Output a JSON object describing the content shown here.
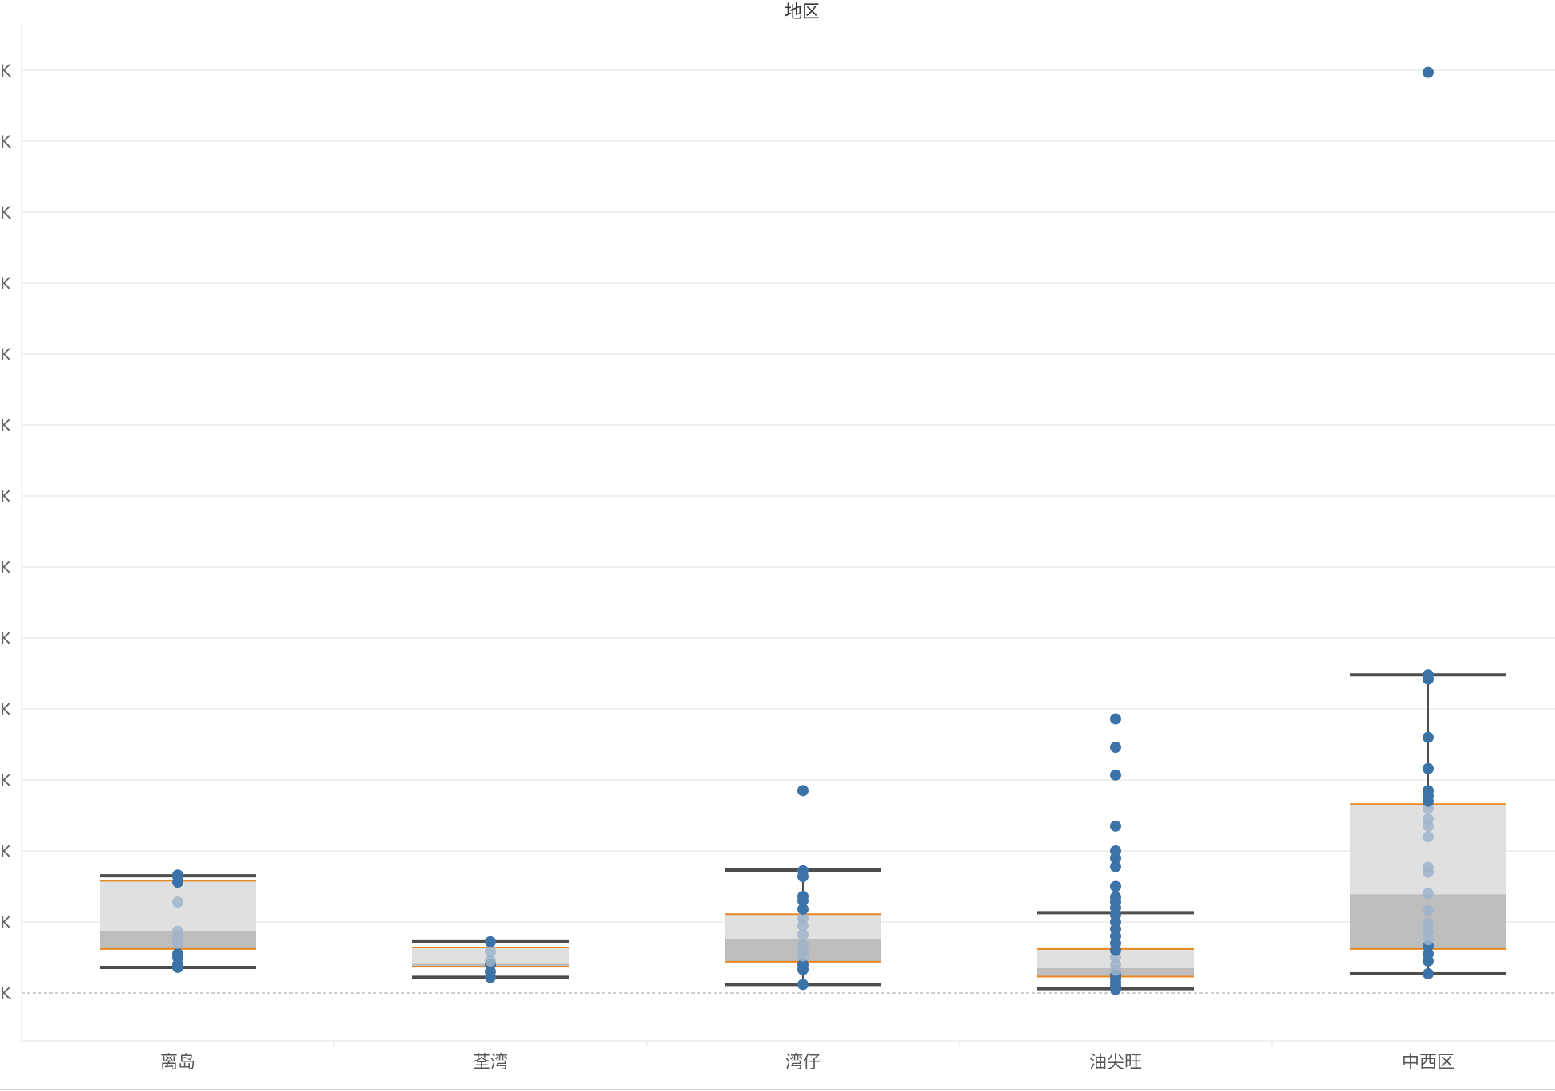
{
  "header": {
    "title": "地区"
  },
  "colors": {
    "point": "#3b73a8",
    "point_faded": "#9fb4ca",
    "median_line": "#e8871e",
    "box_upper": "#e0e0e0",
    "box_lower": "#bdbdbd",
    "whisker": "#4d4d4d",
    "grid": "#ececec"
  },
  "chart_data": {
    "type": "boxplot",
    "title": "地区",
    "xlabel": "",
    "ylabel": "",
    "categories": [
      "离岛",
      "荃湾",
      "湾仔",
      "油尖旺",
      "中西区"
    ],
    "ylim": [
      -1,
      13.7
    ],
    "y_ticks": [
      0,
      1,
      2,
      3,
      4,
      5,
      6,
      7,
      8,
      9,
      10,
      11,
      12,
      13
    ],
    "y_tick_labels": [
      "K",
      "K",
      "K",
      "K",
      "K",
      "K",
      "K",
      "K",
      "K",
      "K",
      "K",
      "K",
      "K",
      "K"
    ],
    "grid": true,
    "series": [
      {
        "category": "离岛",
        "whisker_low": 0.36,
        "q1": 0.62,
        "median": 0.87,
        "q3": 1.58,
        "whisker_high": 1.65,
        "points": [
          0.36,
          0.4,
          0.5,
          0.55,
          0.7,
          0.78,
          0.87,
          1.28,
          1.56,
          1.64,
          1.66
        ]
      },
      {
        "category": "荃湾",
        "whisker_low": 0.22,
        "q1": 0.37,
        "median": 0.41,
        "q3": 0.64,
        "whisker_high": 0.72,
        "points": [
          0.22,
          0.3,
          0.4,
          0.45,
          0.58,
          0.72
        ]
      },
      {
        "category": "湾仔",
        "whisker_low": 0.12,
        "q1": 0.44,
        "median": 0.76,
        "q3": 1.11,
        "whisker_high": 1.73,
        "points": [
          0.12,
          0.33,
          0.4,
          0.52,
          0.58,
          0.68,
          0.82,
          0.95,
          1.05,
          1.18,
          1.3,
          1.36,
          1.64,
          1.72,
          2.85
        ]
      },
      {
        "category": "油尖旺",
        "whisker_low": 0.06,
        "q1": 0.23,
        "median": 0.35,
        "q3": 0.62,
        "whisker_high": 1.13,
        "points": [
          0.05,
          0.1,
          0.15,
          0.2,
          0.25,
          0.32,
          0.4,
          0.5,
          0.6,
          0.7,
          0.8,
          0.9,
          1.0,
          1.1,
          1.2,
          1.28,
          1.35,
          1.5,
          1.78,
          1.9,
          2.0,
          2.35,
          3.07,
          3.46,
          3.86
        ]
      },
      {
        "category": "中西区",
        "whisker_low": 0.27,
        "q1": 0.62,
        "median": 1.39,
        "q3": 2.66,
        "whisker_high": 4.48,
        "points": [
          0.27,
          0.45,
          0.55,
          0.66,
          0.75,
          0.85,
          0.98,
          1.16,
          1.4,
          1.7,
          1.77,
          2.2,
          2.35,
          2.45,
          2.6,
          2.7,
          2.78,
          2.85,
          3.16,
          3.6,
          4.42,
          4.48,
          12.97
        ]
      }
    ]
  }
}
